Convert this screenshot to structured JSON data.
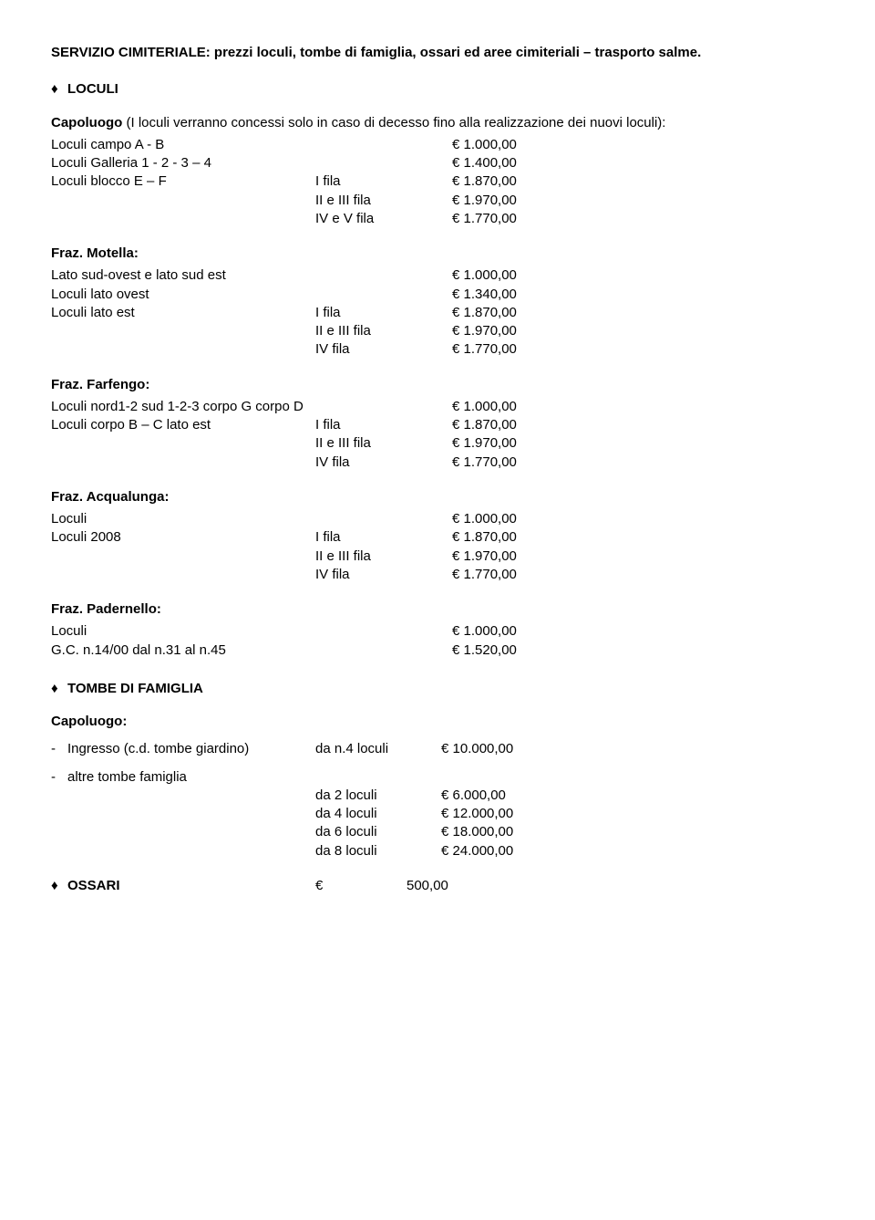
{
  "title": "SERVIZIO CIMITERIALE: prezzi loculi, tombe di famiglia, ossari ed aree cimiteriali – trasporto salme.",
  "loculi": {
    "heading": "LOCULI",
    "intro_prefix": "Capoluogo",
    "intro_rest": " (I loculi verranno concessi solo in caso di decesso fino alla realizzazione dei nuovi loculi):",
    "rows": [
      {
        "label": "Loculi campo A - B",
        "mid": "",
        "val": "€   1.000,00"
      },
      {
        "label": "Loculi Galleria 1 - 2 -  3 – 4",
        "mid": "",
        "val": "€   1.400,00"
      },
      {
        "label": "Loculi blocco E – F",
        "mid": "I fila",
        "val": "€   1.870,00"
      },
      {
        "label": "",
        "mid": "II e III fila",
        "val": "€   1.970,00"
      },
      {
        "label": "",
        "mid": "IV e V fila",
        "val": "€   1.770,00"
      }
    ]
  },
  "motella": {
    "heading": "Fraz. Motella:",
    "rows": [
      {
        "label": "Lato sud-ovest e lato sud est",
        "mid": "",
        "val": "€   1.000,00"
      },
      {
        "label": "Loculi lato ovest",
        "mid": "",
        "val": "€   1.340,00"
      },
      {
        "label": "Loculi lato est",
        "mid": "I fila",
        "val": "€   1.870,00"
      },
      {
        "label": "",
        "mid": "II e III fila",
        "val": "€   1.970,00"
      },
      {
        "label": "",
        "mid": "IV fila",
        "val": "€   1.770,00"
      }
    ]
  },
  "farfengo": {
    "heading": "Fraz. Farfengo:",
    "rows": [
      {
        "label": "Loculi nord1-2  sud 1-2-3   corpo G  corpo D",
        "mid": "",
        "val": "€   1.000,00"
      },
      {
        "label": "Loculi corpo B – C      lato est",
        "mid": "I fila",
        "val": "€   1.870,00"
      },
      {
        "label": "",
        "mid": "II e III fila",
        "val": "€   1.970,00"
      },
      {
        "label": "",
        "mid": "IV fila",
        "val": "€   1.770,00"
      }
    ]
  },
  "acqualunga": {
    "heading": "Fraz. Acqualunga:",
    "rows": [
      {
        "label": "Loculi",
        "mid": "",
        "val": "€   1.000,00"
      },
      {
        "label": "Loculi 2008",
        "mid": "I fila",
        "val": "€   1.870,00"
      },
      {
        "label": "",
        "mid": "II e III fila",
        "val": "€   1.970,00"
      },
      {
        "label": "",
        "mid": "IV fila",
        "val": "€   1.770,00"
      }
    ]
  },
  "padernello": {
    "heading": "Fraz. Padernello:",
    "rows": [
      {
        "label": "Loculi",
        "mid": "",
        "val": "€   1.000,00"
      },
      {
        "label": "G.C. n.14/00 dal n.31 al n.45",
        "mid": "",
        "val": "€   1.520,00"
      }
    ]
  },
  "tombe": {
    "heading": "TOMBE DI FAMIGLIA",
    "capoluogo_heading": "Capoluogo:",
    "ingresso": {
      "label": "Ingresso (c.d. tombe giardino)",
      "mid": "da n.4 loculi",
      "val": "€   10.000,00"
    },
    "altre_label": "altre tombe famiglia",
    "altre_rows": [
      {
        "mid": "da 2 loculi",
        "val": "€     6.000,00"
      },
      {
        "mid": "da 4 loculi",
        "val": "€   12.000,00"
      },
      {
        "mid": "da 6 loculi",
        "val": "€   18.000,00"
      },
      {
        "mid": "da 8 loculi",
        "val": "€   24.000,00"
      }
    ]
  },
  "ossari": {
    "label": "OSSARI",
    "mid": "€",
    "val": "500,00"
  }
}
